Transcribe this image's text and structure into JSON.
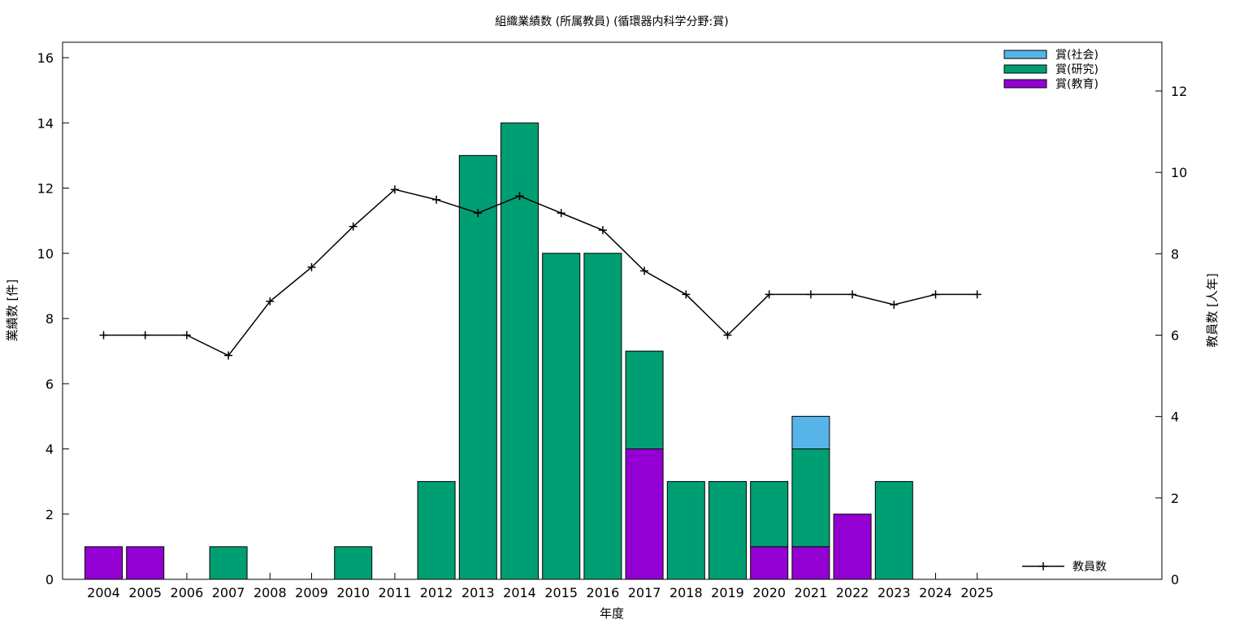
{
  "chart_data": {
    "type": "bar",
    "title": "組織業績数 (所属教員) (循環器内科学分野:賞)",
    "xlabel": "年度",
    "ylabel": "業績数 [件]",
    "y2label": "教員数 [人年]",
    "categories": [
      "2004",
      "2005",
      "2006",
      "2007",
      "2008",
      "2009",
      "2010",
      "2011",
      "2012",
      "2013",
      "2014",
      "2015",
      "2016",
      "2017",
      "2018",
      "2019",
      "2020",
      "2021",
      "2022",
      "2023",
      "2024",
      "2025"
    ],
    "ylim": [
      0,
      16
    ],
    "yticks": [
      "0",
      "2",
      "4",
      "6",
      "8",
      "10",
      "12",
      "14",
      "16"
    ],
    "y2lim": [
      0,
      12
    ],
    "y2ticks": [
      "0",
      "2",
      "4",
      "6",
      "8",
      "10",
      "12"
    ],
    "stacked": true,
    "legend_position": "top-right",
    "series": [
      {
        "name": "賞(教育)",
        "color": "#9400d3",
        "values": [
          1,
          1,
          0,
          0,
          0,
          0,
          0,
          0,
          0,
          0,
          0,
          0,
          0,
          4,
          0,
          0,
          1,
          1,
          2,
          0,
          0,
          0
        ]
      },
      {
        "name": "賞(研究)",
        "color": "#009e73",
        "values": [
          0,
          0,
          0,
          1,
          0,
          0,
          1,
          0,
          3,
          13,
          14,
          10,
          10,
          3,
          3,
          3,
          2,
          3,
          0,
          3,
          0,
          0
        ]
      },
      {
        "name": "賞(社会)",
        "color": "#56b4e9",
        "values": [
          0,
          0,
          0,
          0,
          0,
          0,
          0,
          0,
          0,
          0,
          0,
          0,
          0,
          0,
          0,
          0,
          0,
          1,
          0,
          0,
          0,
          0
        ]
      }
    ],
    "line_series": {
      "name": "教員数",
      "color": "#000000",
      "axis": "right",
      "values": [
        6,
        6,
        6,
        5.5,
        6.83,
        7.67,
        8.67,
        9.58,
        9.33,
        9.0,
        9.42,
        9.0,
        8.58,
        7.58,
        7.0,
        6.0,
        7.0,
        7.0,
        7.0,
        6.75,
        7.0,
        7.0
      ]
    }
  }
}
